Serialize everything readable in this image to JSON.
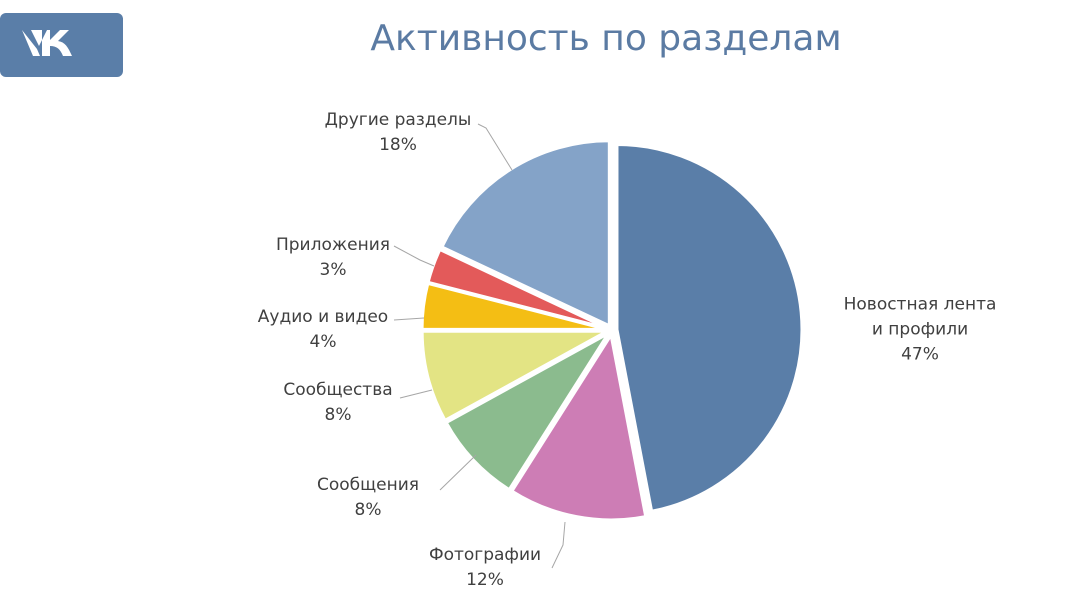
{
  "chart_data": {
    "type": "pie",
    "title": "Активность по разделам",
    "categories": [
      "Новостная лента\nи профили",
      "Фотографии",
      "Сообщения",
      "Сообщества",
      "Аудио и видео",
      "Приложения",
      "Другие разделы"
    ],
    "values": [
      47,
      12,
      8,
      8,
      4,
      3,
      18
    ],
    "value_labels": [
      "47%",
      "12%",
      "8%",
      "8%",
      "4%",
      "3%",
      "18%"
    ],
    "colors": [
      "#5a7ea8",
      "#cd7db5",
      "#8bbb8e",
      "#e3e484",
      "#f4be14",
      "#e35a5a",
      "#84a3c8"
    ]
  }
}
